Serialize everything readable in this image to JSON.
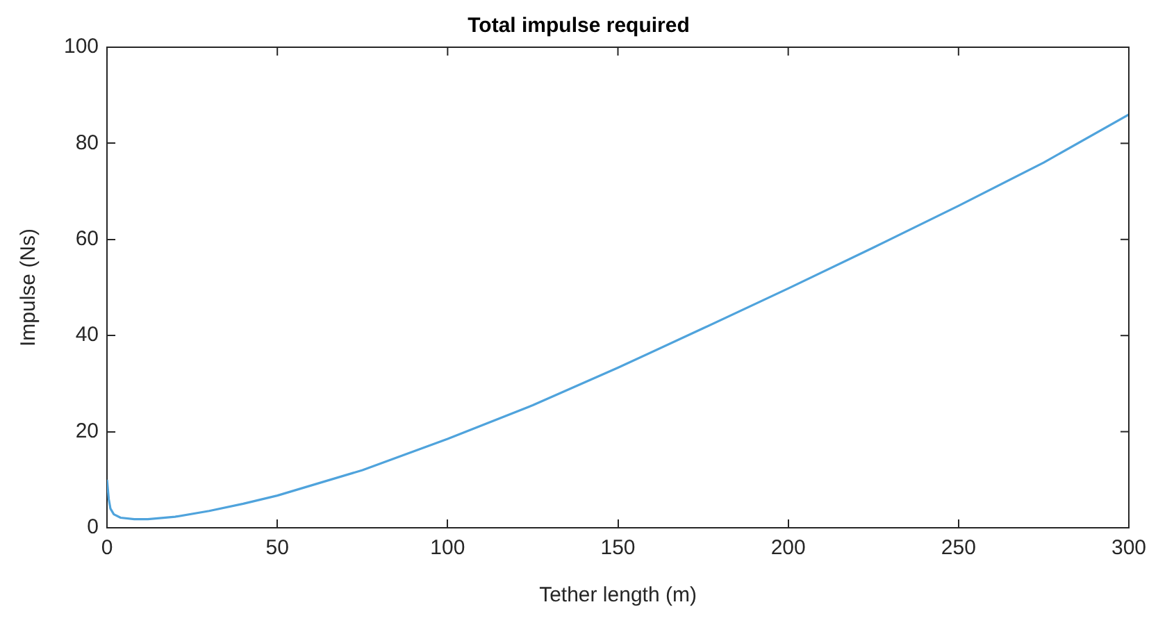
{
  "chart_data": {
    "type": "line",
    "title": "Total impulse required",
    "xlabel": "Tether length (m)",
    "ylabel": "Impulse (Ns)",
    "x": [
      0,
      0.5,
      1,
      2,
      4,
      8,
      12,
      20,
      30,
      40,
      50,
      75,
      100,
      125,
      150,
      175,
      200,
      225,
      250,
      275,
      300
    ],
    "series": [
      {
        "color": "#4fa3dc",
        "values": [
          10,
          6,
          4,
          2.8,
          2.1,
          1.8,
          1.8,
          2.3,
          3.5,
          5,
          6.7,
          12,
          18.5,
          25.5,
          33.3,
          41.5,
          49.8,
          58.3,
          67,
          76,
          86
        ]
      }
    ],
    "xlim": [
      0,
      300
    ],
    "xticks": [
      0,
      50,
      100,
      150,
      200,
      250,
      300
    ],
    "ylim": [
      0,
      100
    ],
    "yticks": [
      0,
      20,
      40,
      60,
      80,
      100
    ],
    "grid": false,
    "legend": false,
    "marker": "none",
    "line_style": "solid"
  }
}
